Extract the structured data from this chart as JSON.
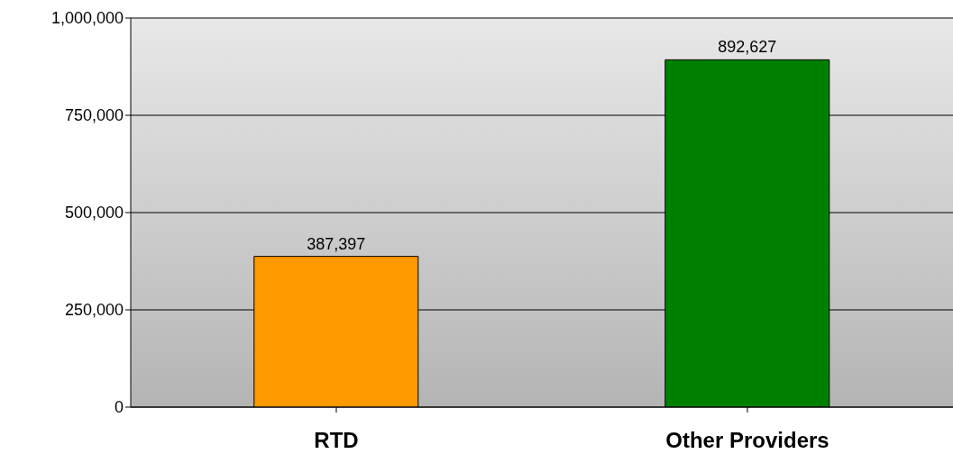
{
  "chart_data": {
    "type": "bar",
    "categories": [
      "RTD",
      "Other Providers"
    ],
    "values": [
      387397,
      892627
    ],
    "value_labels": [
      "387,397",
      "892,627"
    ],
    "colors": [
      "#ff9900",
      "#008000"
    ],
    "ylim": [
      0,
      1000000
    ],
    "yticks": [
      0,
      {
        "value": 250000,
        "label": "250,000"
      },
      {
        "value": 500000,
        "label": "500,000"
      },
      {
        "value": 750000,
        "label": "750,000"
      },
      {
        "value": 1000000,
        "label": "1,000,000"
      }
    ],
    "grid": "y"
  }
}
